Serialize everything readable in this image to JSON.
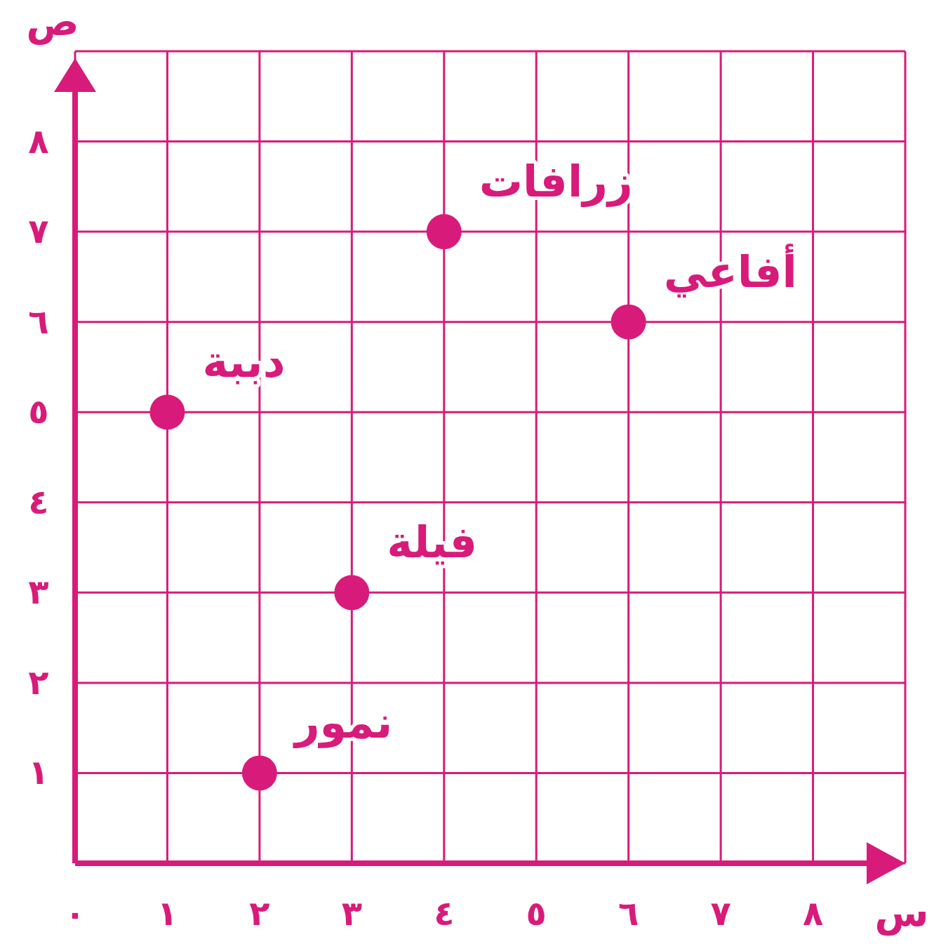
{
  "chart_data": {
    "type": "scatter",
    "xlabel": "س",
    "ylabel": "ص",
    "x": [
      1,
      2,
      3,
      4,
      6
    ],
    "values": [
      5,
      1,
      3,
      7,
      6
    ],
    "color": "#d81b7a",
    "marker": "circle",
    "grid": true,
    "xlim": [
      0,
      9
    ],
    "ylim": [
      0,
      9
    ],
    "xticks": [
      {
        "value": 0,
        "label": "٠"
      },
      {
        "value": 1,
        "label": "١"
      },
      {
        "value": 2,
        "label": "٢"
      },
      {
        "value": 3,
        "label": "٣"
      },
      {
        "value": 4,
        "label": "٤"
      },
      {
        "value": 5,
        "label": "٥"
      },
      {
        "value": 6,
        "label": "٦"
      },
      {
        "value": 7,
        "label": "٧"
      },
      {
        "value": 8,
        "label": "٨"
      }
    ],
    "yticks": [
      {
        "value": 0,
        "label": null
      },
      {
        "value": 1,
        "label": "١"
      },
      {
        "value": 2,
        "label": "٢"
      },
      {
        "value": 3,
        "label": "٣"
      },
      {
        "value": 4,
        "label": "٤"
      },
      {
        "value": 5,
        "label": "٥"
      },
      {
        "value": 6,
        "label": "٦"
      },
      {
        "value": 7,
        "label": "٧"
      },
      {
        "value": 8,
        "label": "٨"
      }
    ],
    "annotations": [
      {
        "text": "دببة",
        "x": 1,
        "y": 5
      },
      {
        "text": "نمور",
        "x": 2,
        "y": 1
      },
      {
        "text": "فيلة",
        "x": 3,
        "y": 3
      },
      {
        "text": "زرافات",
        "x": 4,
        "y": 7
      },
      {
        "text": "أفاعي",
        "x": 6,
        "y": 6
      }
    ]
  }
}
